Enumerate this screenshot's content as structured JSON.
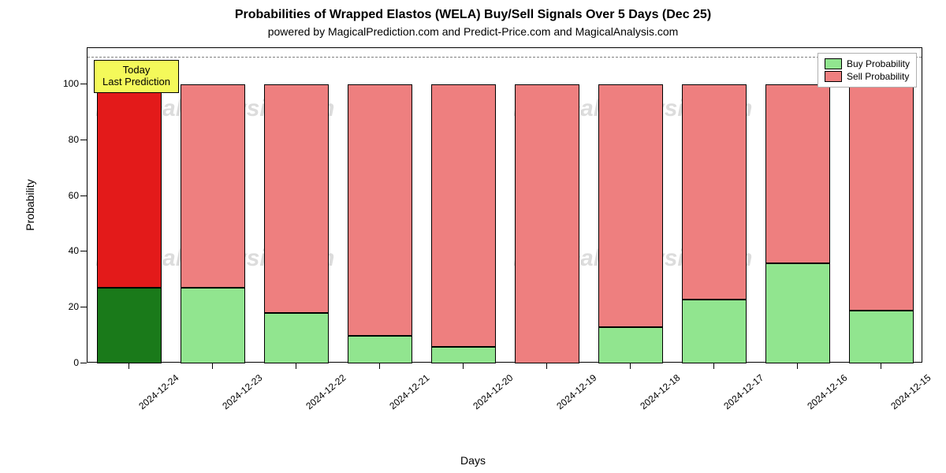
{
  "title": "Probabilities of Wrapped Elastos (WELA) Buy/Sell Signals Over 5 Days (Dec 25)",
  "subtitle": "powered by MagicalPrediction.com and Predict-Price.com and MagicalAnalysis.com",
  "x_axis_label": "Days",
  "y_axis_label": "Probability",
  "watermark_text": "MagicalAnalysis.com",
  "annotation": {
    "line1": "Today",
    "line2": "Last Prediction"
  },
  "legend": {
    "buy": "Buy Probability",
    "sell": "Sell Probability"
  },
  "chart": {
    "type": "bar",
    "ylim": [
      0,
      113
    ],
    "ytick_values": [
      0,
      20,
      40,
      60,
      80,
      100
    ],
    "dashline_value": 110,
    "background_color": "#ffffff",
    "border_color": "#000000",
    "dashline_color": "#808080",
    "bar_border_color": "#000000",
    "bar_width": 0.78,
    "n_bars": 10,
    "label_fontsize": 14,
    "tick_fontsize": 12,
    "title_fontsize": 16,
    "subtitle_fontsize": 14,
    "colors": {
      "buy_normal": "#91e58f",
      "sell_normal": "#ee7f7f",
      "buy_highlight": "#1a7a1a",
      "sell_highlight": "#e31a1a",
      "legend_buy": "#91e58f",
      "legend_sell": "#ee7f7f"
    },
    "categories": [
      "2024-12-24",
      "2024-12-23",
      "2024-12-22",
      "2024-12-21",
      "2024-12-20",
      "2024-12-19",
      "2024-12-18",
      "2024-12-17",
      "2024-12-16",
      "2024-12-15"
    ],
    "buy_values": [
      27,
      27,
      18,
      10,
      6,
      0,
      13,
      23,
      36,
      19
    ],
    "sell_values": [
      73,
      73,
      82,
      90,
      94,
      100,
      87,
      77,
      64,
      81
    ],
    "highlight_index": 0
  }
}
